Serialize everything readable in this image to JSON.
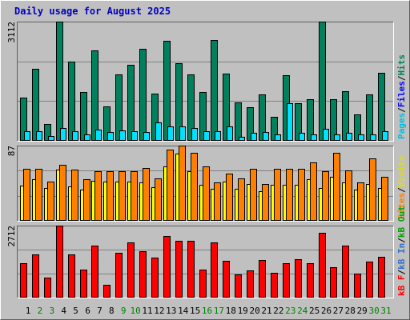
{
  "chart_data": [
    {
      "type": "bar",
      "title": "Daily usage for August 2025",
      "ylim": [
        0,
        3112
      ],
      "yticks": [
        3112
      ],
      "grid_lines": 3,
      "series": [
        {
          "color": "#00805c",
          "values": [
            1135,
            1872,
            442,
            3112,
            2061,
            1283,
            2355,
            904,
            1724,
            1977,
            2397,
            1241,
            2608,
            2019,
            1724,
            1283,
            2629,
            1746,
            1009,
            883,
            1220,
            631,
            1703,
            988,
            1094,
            3112,
            1094,
            1304,
            694,
            1220,
            1766
          ]
        },
        {
          "color": "#00e0ff",
          "values": [
            252,
            252,
            126,
            336,
            252,
            168,
            294,
            231,
            273,
            252,
            231,
            484,
            378,
            378,
            336,
            252,
            252,
            378,
            105,
            210,
            231,
            168,
            988,
            210,
            168,
            315,
            168,
            210,
            168,
            168,
            252
          ]
        }
      ],
      "legend": [
        {
          "text": "Pages",
          "color": "#00c0e0"
        },
        {
          "text": "Files",
          "color": "#0000ff"
        },
        {
          "text": "Hits",
          "color": "#00805c"
        }
      ],
      "legend_separator": "/"
    },
    {
      "type": "bar",
      "ylim": [
        0,
        87
      ],
      "yticks": [
        87
      ],
      "grid_lines": 3,
      "series": [
        {
          "color": "#ffff00",
          "values": [
            41,
            48,
            38,
            59,
            40,
            36,
            46,
            45,
            45,
            45,
            44,
            39,
            63,
            78,
            57,
            42,
            37,
            45,
            37,
            43,
            34,
            42,
            42,
            42,
            48,
            38,
            51,
            44,
            36,
            43,
            38
          ]
        },
        {
          "color": "#ff8000",
          "values": [
            60,
            60,
            45,
            65,
            59,
            48,
            57,
            57,
            57,
            57,
            61,
            49,
            82,
            87,
            79,
            63,
            44,
            55,
            49,
            60,
            43,
            60,
            60,
            60,
            68,
            57,
            79,
            58,
            44,
            72,
            51
          ]
        }
      ],
      "legend": [
        {
          "text": "Sites",
          "color": "#ff8000"
        },
        {
          "text": "Visits",
          "color": "#e0e000"
        }
      ],
      "legend_separator": "/"
    },
    {
      "type": "bar",
      "ylim": [
        0,
        2712
      ],
      "yticks": [
        2712
      ],
      "grid_lines": 3,
      "series": [
        {
          "color": "#ff0000",
          "values": [
            1294,
            1633,
            739,
            2712,
            1633,
            1047,
            1972,
            493,
            1695,
            2065,
            1756,
            1510,
            2311,
            2126,
            2126,
            1047,
            2065,
            1386,
            862,
            1017,
            1417,
            924,
            1294,
            1448,
            1294,
            2434,
            1140,
            1972,
            893,
            1356,
            1541
          ]
        }
      ],
      "legend": [
        {
          "text": "kB F",
          "color": "#ff0000"
        },
        {
          "text": "kB In",
          "color": "#3070d0"
        },
        {
          "text": "kB Out",
          "color": "#00a000"
        }
      ],
      "legend_separator": "/",
      "categories": [
        "1",
        "2",
        "3",
        "4",
        "5",
        "6",
        "7",
        "8",
        "9",
        "10",
        "11",
        "12",
        "13",
        "14",
        "15",
        "16",
        "17",
        "18",
        "19",
        "20",
        "21",
        "22",
        "23",
        "24",
        "25",
        "26",
        "27",
        "28",
        "29",
        "30",
        "31"
      ],
      "category_colors": [
        "#000000",
        "#008000",
        "#008000",
        "#000000",
        "#000000",
        "#000000",
        "#000000",
        "#000000",
        "#008000",
        "#008000",
        "#000000",
        "#000000",
        "#000000",
        "#000000",
        "#000000",
        "#008000",
        "#008000",
        "#000000",
        "#000000",
        "#000000",
        "#000000",
        "#000000",
        "#008000",
        "#008000",
        "#000000",
        "#000000",
        "#000000",
        "#000000",
        "#000000",
        "#008000",
        "#008000"
      ]
    }
  ]
}
